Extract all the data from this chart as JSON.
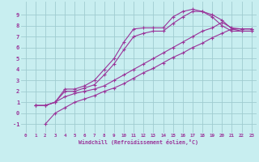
{
  "xlabel": "Windchill (Refroidissement éolien,°C)",
  "background_color": "#c8eef0",
  "grid_color": "#a0ccd0",
  "line_color": "#993399",
  "xlim": [
    -0.5,
    23.5
  ],
  "ylim": [
    -1.8,
    10.2
  ],
  "xticks": [
    0,
    1,
    2,
    3,
    4,
    5,
    6,
    7,
    8,
    9,
    10,
    11,
    12,
    13,
    14,
    15,
    16,
    17,
    18,
    19,
    20,
    21,
    22,
    23
  ],
  "yticks": [
    -1,
    0,
    1,
    2,
    3,
    4,
    5,
    6,
    7,
    8,
    9
  ],
  "series": [
    {
      "x": [
        1,
        2,
        3,
        4,
        5,
        6,
        7,
        8,
        9,
        10,
        11,
        12,
        13,
        14,
        15,
        16,
        17,
        18,
        19,
        20,
        21,
        22,
        23
      ],
      "y": [
        0.7,
        0.7,
        1.0,
        2.2,
        2.2,
        2.5,
        3.0,
        4.0,
        5.0,
        6.5,
        7.7,
        7.8,
        7.8,
        7.8,
        8.8,
        9.3,
        9.5,
        9.3,
        8.8,
        8.0,
        7.5,
        7.5,
        7.5
      ]
    },
    {
      "x": [
        1,
        2,
        3,
        4,
        5,
        6,
        7,
        8,
        9,
        10,
        11,
        12,
        13,
        14,
        15,
        16,
        17,
        18,
        19,
        20,
        21,
        22,
        23
      ],
      "y": [
        0.7,
        0.7,
        1.0,
        2.0,
        2.0,
        2.3,
        2.6,
        3.5,
        4.5,
        5.8,
        7.0,
        7.3,
        7.5,
        7.5,
        8.2,
        8.8,
        9.3,
        9.3,
        9.0,
        8.5,
        7.7,
        7.7,
        7.7
      ]
    },
    {
      "x": [
        1,
        2,
        3,
        4,
        5,
        6,
        7,
        8,
        9,
        10,
        11,
        12,
        13,
        14,
        15,
        16,
        17,
        18,
        19,
        20,
        21,
        22,
        23
      ],
      "y": [
        0.7,
        0.7,
        1.0,
        1.5,
        1.8,
        2.0,
        2.2,
        2.5,
        3.0,
        3.5,
        4.0,
        4.5,
        5.0,
        5.5,
        6.0,
        6.5,
        7.0,
        7.5,
        7.8,
        8.3,
        7.8,
        7.7,
        7.7
      ]
    },
    {
      "x": [
        2,
        3,
        4,
        5,
        6,
        7,
        8,
        9,
        10,
        11,
        12,
        13,
        14,
        15,
        16,
        17,
        18,
        19,
        20,
        21,
        22,
        23
      ],
      "y": [
        -1.0,
        0.0,
        0.5,
        1.0,
        1.3,
        1.6,
        2.0,
        2.3,
        2.7,
        3.2,
        3.7,
        4.1,
        4.6,
        5.1,
        5.5,
        6.0,
        6.4,
        6.9,
        7.3,
        7.7,
        7.5,
        7.5
      ]
    }
  ]
}
